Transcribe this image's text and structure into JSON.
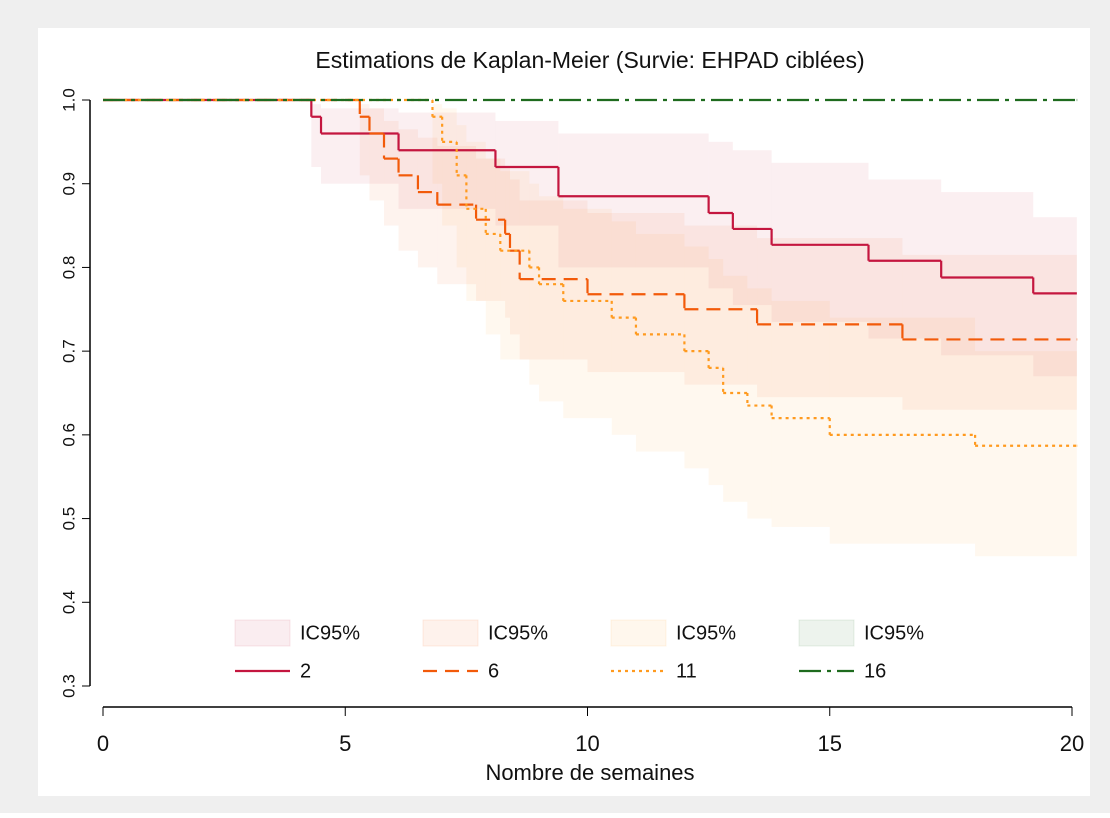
{
  "chart_data": {
    "type": "step",
    "title": "Estimations de Kaplan-Meier (Survie: EHPAD ciblées)",
    "x_label": "Nombre de semaines",
    "xlim": [
      0,
      20
    ],
    "xticks": [
      0,
      5,
      10,
      15,
      20
    ],
    "ylim": [
      0.3,
      1.0
    ],
    "yticks": [
      {
        "value": 0.3,
        "label": "0.3"
      },
      {
        "value": 0.4,
        "label": "0.4"
      },
      {
        "value": 0.5,
        "label": "0.5"
      },
      {
        "value": 0.6,
        "label": "0.6"
      },
      {
        "value": 0.7,
        "label": "0.7"
      },
      {
        "value": 0.8,
        "label": "0.8"
      },
      {
        "value": 0.9,
        "label": "0.9"
      },
      {
        "value": 1.0,
        "label": "1.0"
      }
    ],
    "series": [
      {
        "name": "2",
        "ci_name": "IC95%",
        "color": "#c4163f",
        "dash": "",
        "x": [
          0,
          4.3,
          4.5,
          6.1,
          8.1,
          9.4,
          12.5,
          13.0,
          13.8,
          15.8,
          17.3,
          19.2,
          20.1
        ],
        "values": [
          1,
          0.98,
          0.96,
          0.94,
          0.92,
          0.885,
          0.865,
          0.846,
          0.827,
          0.808,
          0.788,
          0.769,
          0.769
        ],
        "ci_lower": [
          1,
          0.92,
          0.9,
          0.87,
          0.85,
          0.8,
          0.775,
          0.755,
          0.735,
          0.715,
          0.695,
          0.67,
          0.67
        ],
        "ci_upper": [
          1,
          0.995,
          0.99,
          0.985,
          0.975,
          0.96,
          0.95,
          0.94,
          0.925,
          0.905,
          0.89,
          0.86,
          0.86
        ]
      },
      {
        "name": "6",
        "ci_name": "IC95%",
        "color": "#f25a0a",
        "dash": "14 8",
        "x": [
          0,
          5.3,
          5.5,
          5.8,
          6.1,
          6.5,
          6.9,
          7.7,
          8.3,
          8.4,
          8.6,
          10.0,
          12.0,
          13.5,
          16.5,
          20.1
        ],
        "values": [
          1,
          0.98,
          0.96,
          0.93,
          0.91,
          0.89,
          0.875,
          0.857,
          0.84,
          0.82,
          0.786,
          0.768,
          0.75,
          0.732,
          0.714,
          0.714
        ],
        "ci_lower": [
          1,
          0.91,
          0.88,
          0.85,
          0.82,
          0.8,
          0.78,
          0.76,
          0.74,
          0.72,
          0.69,
          0.675,
          0.66,
          0.645,
          0.63,
          0.63
        ],
        "ci_upper": [
          1,
          0.995,
          0.99,
          0.975,
          0.965,
          0.955,
          0.945,
          0.93,
          0.92,
          0.905,
          0.88,
          0.865,
          0.85,
          0.835,
          0.815,
          0.815
        ]
      },
      {
        "name": "11",
        "ci_name": "IC95%",
        "color": "#ff9a1f",
        "dash": "3 4",
        "x": [
          0,
          6.8,
          7.0,
          7.3,
          7.5,
          7.9,
          8.2,
          8.8,
          9.0,
          9.5,
          10.5,
          11.0,
          12.0,
          12.5,
          12.8,
          13.3,
          13.8,
          15.0,
          18.0,
          20.1
        ],
        "values": [
          1,
          0.98,
          0.95,
          0.91,
          0.87,
          0.84,
          0.82,
          0.8,
          0.78,
          0.76,
          0.74,
          0.72,
          0.7,
          0.68,
          0.65,
          0.635,
          0.62,
          0.6,
          0.587,
          0.587
        ],
        "ci_lower": [
          1,
          0.9,
          0.85,
          0.8,
          0.76,
          0.72,
          0.69,
          0.66,
          0.64,
          0.62,
          0.6,
          0.58,
          0.56,
          0.54,
          0.52,
          0.5,
          0.49,
          0.47,
          0.455,
          0.455
        ],
        "ci_upper": [
          1,
          0.995,
          0.99,
          0.97,
          0.95,
          0.93,
          0.915,
          0.9,
          0.885,
          0.87,
          0.855,
          0.84,
          0.825,
          0.81,
          0.79,
          0.775,
          0.76,
          0.74,
          0.7,
          0.7
        ]
      },
      {
        "name": "16",
        "ci_name": "IC95%",
        "color": "#1e6b1e",
        "dash": "22 6 4 6",
        "x": [
          0,
          20.1
        ],
        "values": [
          1,
          1
        ],
        "ci_lower": [
          1,
          1
        ],
        "ci_upper": [
          1,
          1
        ]
      }
    ]
  }
}
